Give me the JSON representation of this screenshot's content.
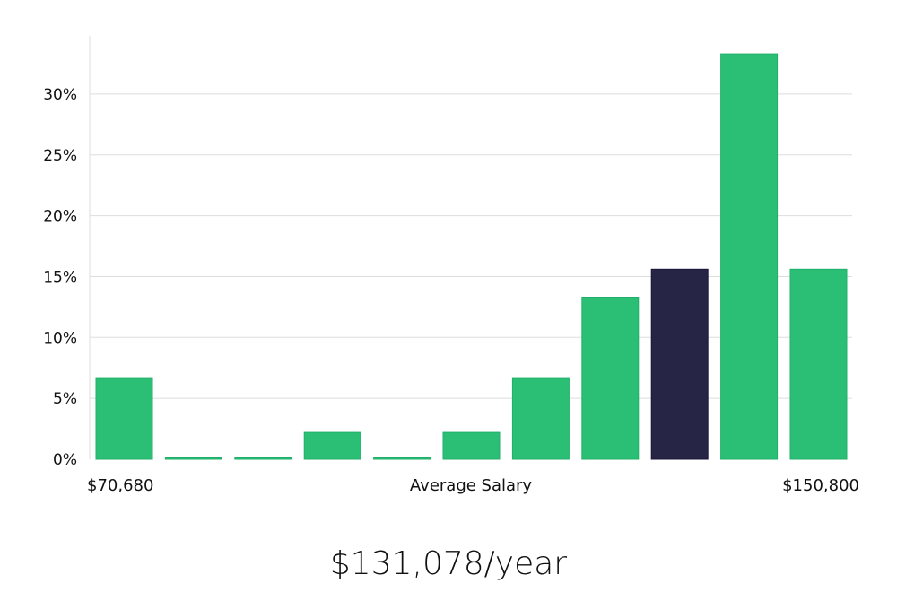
{
  "chart_data": {
    "type": "bar",
    "categories": [
      "1",
      "2",
      "3",
      "4",
      "5",
      "6",
      "7",
      "8",
      "9",
      "10",
      "11"
    ],
    "values": [
      6.7,
      0,
      0,
      2.2,
      0,
      2.2,
      6.7,
      13.3,
      15.6,
      33.3,
      15.6
    ],
    "highlight_index": 8,
    "ylim": [
      0,
      33.5
    ],
    "yticks": [
      "0%",
      "5%",
      "10%",
      "15%",
      "20%",
      "25%",
      "30%"
    ],
    "ytick_values": [
      0,
      5,
      10,
      15,
      20,
      25,
      30
    ],
    "x_min_label": "$70,680",
    "xlabel": "Average Salary",
    "x_max_label": "$150,800",
    "grid": true,
    "bar_color": "#2bbf76",
    "highlight_color": "#272546",
    "grid_color": "#dddddd"
  },
  "average_salary": "$131,078/year"
}
